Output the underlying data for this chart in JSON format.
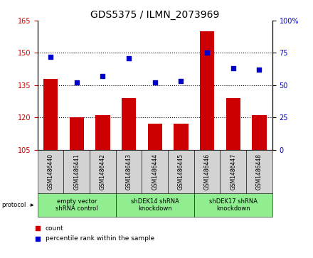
{
  "title": "GDS5375 / ILMN_2073969",
  "samples": [
    "GSM1486440",
    "GSM1486441",
    "GSM1486442",
    "GSM1486443",
    "GSM1486444",
    "GSM1486445",
    "GSM1486446",
    "GSM1486447",
    "GSM1486448"
  ],
  "counts": [
    138,
    120,
    121,
    129,
    117,
    117,
    160,
    129,
    121
  ],
  "percentile_values": [
    72,
    52,
    57,
    71,
    52,
    53,
    75,
    63,
    62
  ],
  "ylim_left": [
    105,
    165
  ],
  "ylim_right": [
    0,
    100
  ],
  "yticks_left": [
    105,
    120,
    135,
    150,
    165
  ],
  "yticks_right": [
    0,
    25,
    50,
    75,
    100
  ],
  "bar_color": "#cc0000",
  "dot_color": "#0000cc",
  "hgrid_lines": [
    120,
    135,
    150
  ],
  "groups": [
    {
      "label": "empty vector\nshRNA control",
      "start": 0,
      "end": 3
    },
    {
      "label": "shDEK14 shRNA\nknockdown",
      "start": 3,
      "end": 6
    },
    {
      "label": "shDEK17 shRNA\nknockdown",
      "start": 6,
      "end": 9
    }
  ],
  "group_color": "#90ee90",
  "sample_box_color": "#d3d3d3",
  "tick_color_left": "#cc0000",
  "tick_color_right": "#0000cc",
  "title_fontsize": 10,
  "tick_fontsize": 7,
  "label_fontsize": 6,
  "group_fontsize": 6
}
